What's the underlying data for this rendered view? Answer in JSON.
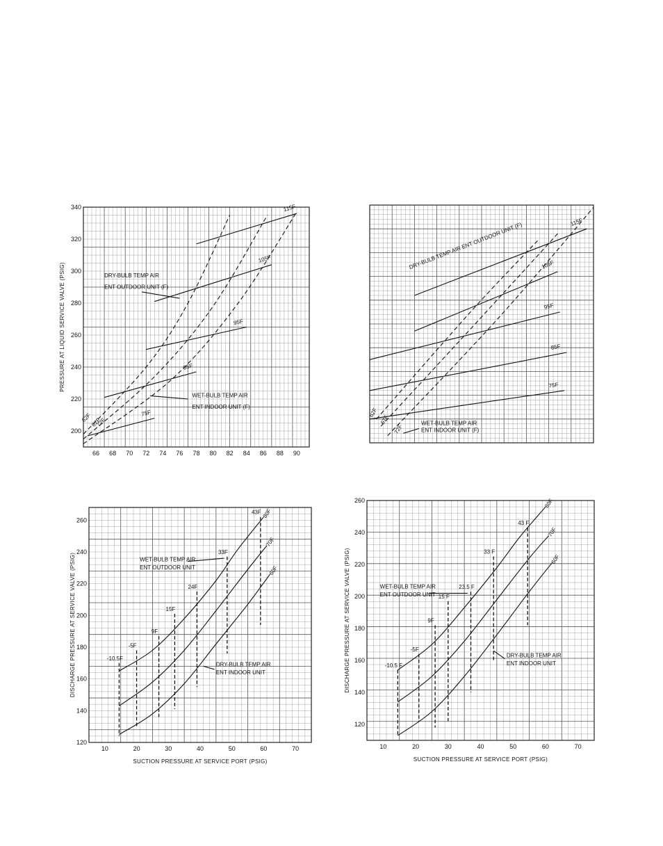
{
  "chart_data": [
    {
      "id": "top-left",
      "type": "line",
      "ylabel": "PRESSURE AT LIQUID SERVICE VALVE (PSIG)",
      "xlabel": "",
      "xlim": [
        64.5,
        91.5
      ],
      "ylim": [
        190,
        340
      ],
      "xticks": [
        66,
        68,
        70,
        72,
        74,
        76,
        78,
        80,
        82,
        84,
        86,
        88,
        90
      ],
      "yticks": [
        200,
        220,
        240,
        260,
        280,
        300,
        320,
        340
      ],
      "series": [
        {
          "name": "115F",
          "style": "solid",
          "points": [
            [
              78,
              317
            ],
            [
              90,
              336
            ]
          ]
        },
        {
          "name": "105F",
          "style": "solid",
          "points": [
            [
              73,
              281
            ],
            [
              87,
              304
            ]
          ]
        },
        {
          "name": "95F",
          "style": "solid",
          "points": [
            [
              72,
              251
            ],
            [
              84,
              265
            ]
          ]
        },
        {
          "name": "85F",
          "style": "solid",
          "points": [
            [
              67,
              221
            ],
            [
              78,
              237
            ]
          ]
        },
        {
          "name": "75F",
          "style": "solid",
          "points": [
            [
              65,
              197
            ],
            [
              73,
              208
            ]
          ]
        },
        {
          "name": "62F",
          "style": "dashed",
          "points": [
            [
              64.5,
              198
            ],
            [
              72,
              240
            ],
            [
              77,
              280
            ],
            [
              82,
              335
            ]
          ]
        },
        {
          "name": "67F",
          "style": "dashed",
          "points": [
            [
              64.5,
              195
            ],
            [
              73,
              234
            ],
            [
              80,
              278
            ],
            [
              86.5,
              335
            ]
          ]
        },
        {
          "name": "72F",
          "style": "dashed",
          "points": [
            [
              64.5,
              192
            ],
            [
              75,
              232
            ],
            [
              83,
              280
            ],
            [
              90,
              337
            ]
          ]
        }
      ],
      "annotations": [
        {
          "text": "DRY-BULB TEMP AIR",
          "x": 67,
          "y": 296
        },
        {
          "text": "ENT OUTDOOR UNIT (F)",
          "x": 67,
          "y": 289
        },
        {
          "text": "WET-BULB TEMP AIR",
          "x": 77.5,
          "y": 221
        },
        {
          "text": "ENT INDOOR UNIT (F)",
          "x": 77.5,
          "y": 214
        }
      ]
    },
    {
      "id": "top-right",
      "type": "line",
      "ylabel": "",
      "xlabel": "",
      "series": [
        {
          "name": "115F",
          "style": "solid",
          "points": [
            [
              0.2,
              0.62
            ],
            [
              0.97,
              0.9
            ]
          ]
        },
        {
          "name": "105F",
          "style": "solid",
          "points": [
            [
              0.2,
              0.47
            ],
            [
              0.84,
              0.72
            ]
          ]
        },
        {
          "name": "95F",
          "style": "solid",
          "points": [
            [
              0.0,
              0.35
            ],
            [
              0.85,
              0.55
            ]
          ]
        },
        {
          "name": "85F",
          "style": "solid",
          "points": [
            [
              0.0,
              0.22
            ],
            [
              0.88,
              0.38
            ]
          ]
        },
        {
          "name": "75F",
          "style": "solid",
          "points": [
            [
              0.0,
              0.1
            ],
            [
              0.87,
              0.22
            ]
          ]
        },
        {
          "name": "62F",
          "style": "dashed",
          "points": [
            [
              0.03,
              0.1
            ],
            [
              0.45,
              0.55
            ],
            [
              0.75,
              0.85
            ]
          ]
        },
        {
          "name": "67F",
          "style": "dashed",
          "points": [
            [
              0.05,
              0.07
            ],
            [
              0.52,
              0.55
            ],
            [
              0.84,
              0.88
            ]
          ]
        },
        {
          "name": "72F",
          "style": "dashed",
          "points": [
            [
              0.08,
              0.03
            ],
            [
              0.58,
              0.53
            ],
            [
              1.0,
              0.99
            ]
          ]
        }
      ],
      "annotations": [
        {
          "text": "DRY-BULB TEMP AIR ENT OUTDOOR UNIT (F)"
        },
        {
          "text": "WET-BULB TEMP AIR"
        },
        {
          "text": "ENT INDOOR UNIT (F)"
        }
      ]
    },
    {
      "id": "bottom-left",
      "type": "line",
      "ylabel": "DISCHARGE PRESSURE AT SERVICE VALVE (PSIG)",
      "xlabel": "SUCTION PRESSURE AT SERVICE PORT (PSIG)",
      "xlim": [
        5,
        75
      ],
      "ylim": [
        120,
        268
      ],
      "xticks": [
        10,
        20,
        30,
        40,
        50,
        60,
        70
      ],
      "yticks": [
        120,
        140,
        160,
        180,
        200,
        220,
        240,
        260
      ],
      "series": [
        {
          "name": "80F",
          "style": "solid",
          "points": [
            [
              14.5,
              165
            ],
            [
              25,
              178
            ],
            [
              35,
              198
            ],
            [
              45,
              222
            ],
            [
              52,
              242
            ],
            [
              60,
              262
            ]
          ]
        },
        {
          "name": "70F",
          "style": "solid",
          "points": [
            [
              14.5,
              143
            ],
            [
              25,
              158
            ],
            [
              35,
              178
            ],
            [
              45,
              203
            ],
            [
              55,
              229
            ],
            [
              61,
              244
            ]
          ]
        },
        {
          "name": "60F",
          "style": "solid",
          "points": [
            [
              14.5,
              125
            ],
            [
              25,
              138
            ],
            [
              35,
              157
            ],
            [
              45,
              182
            ],
            [
              55,
              207
            ],
            [
              62,
              226
            ]
          ]
        }
      ],
      "wet_bulb_lines": [
        {
          "label": "-10.5F",
          "x": 14.5,
          "y_top": 170,
          "y_bot": 124
        },
        {
          "label": "-5F",
          "x": 20,
          "y_top": 178,
          "y_bot": 130
        },
        {
          "label": "9F",
          "x": 27,
          "y_top": 187,
          "y_bot": 136
        },
        {
          "label": "15F",
          "x": 32,
          "y_top": 201,
          "y_bot": 141
        },
        {
          "label": "24F",
          "x": 39,
          "y_top": 215,
          "y_bot": 155
        },
        {
          "label": "33F",
          "x": 48.5,
          "y_top": 237,
          "y_bot": 176
        },
        {
          "label": "43F",
          "x": 59,
          "y_top": 262,
          "y_bot": 194
        }
      ],
      "annotations": [
        {
          "text": "WET-BULB TEMP AIR",
          "x": 21,
          "y": 234
        },
        {
          "text": "ENT OUTDOOR UNIT",
          "x": 21,
          "y": 229
        },
        {
          "text": "DRY-BULB TEMP AIR",
          "x": 45,
          "y": 168
        },
        {
          "text": "ENT INDOOR UNIT",
          "x": 45,
          "y": 163
        }
      ]
    },
    {
      "id": "bottom-right",
      "type": "line",
      "ylabel": "DISCHARGE PRESSURE AT SERVICE VALVE (PSIG)",
      "xlabel": "SUCTION PRESSURE AT SERVICE PORT (PSIG)",
      "xlim": [
        5,
        75
      ],
      "ylim": [
        110,
        260
      ],
      "xticks": [
        10,
        20,
        30,
        40,
        50,
        60,
        70
      ],
      "yticks": [
        120,
        140,
        160,
        180,
        200,
        220,
        240,
        260
      ],
      "series": [
        {
          "name": "80F",
          "style": "solid",
          "points": [
            [
              14.5,
              154
            ],
            [
              25,
              170
            ],
            [
              35,
              193
            ],
            [
              45,
              218
            ],
            [
              52,
              237
            ],
            [
              60,
              256
            ]
          ]
        },
        {
          "name": "70F",
          "style": "solid",
          "points": [
            [
              14.5,
              134
            ],
            [
              25,
              150
            ],
            [
              35,
              172
            ],
            [
              45,
              198
            ],
            [
              55,
              224
            ],
            [
              61,
              238
            ]
          ]
        },
        {
          "name": "60F",
          "style": "solid",
          "points": [
            [
              14.5,
              113
            ],
            [
              25,
              128
            ],
            [
              35,
              150
            ],
            [
              45,
              176
            ],
            [
              55,
              203
            ],
            [
              62,
              221
            ]
          ]
        }
      ],
      "wet_bulb_lines": [
        {
          "label": "-10.5 F",
          "x": 14.5,
          "y_top": 154,
          "y_bot": 113
        },
        {
          "label": "-5F",
          "x": 21,
          "y_top": 164,
          "y_bot": 122
        },
        {
          "label": "9F",
          "x": 26,
          "y_top": 182,
          "y_bot": 118
        },
        {
          "label": "15 F",
          "x": 30,
          "y_top": 197,
          "y_bot": 122
        },
        {
          "label": "23.5 F",
          "x": 37,
          "y_top": 203,
          "y_bot": 140
        },
        {
          "label": "33 F",
          "x": 44,
          "y_top": 225,
          "y_bot": 160
        },
        {
          "label": "43 F",
          "x": 54.5,
          "y_top": 243,
          "y_bot": 182
        }
      ],
      "annotations": [
        {
          "text": "WET-BULB TEMP AIR",
          "x": 9,
          "y": 205
        },
        {
          "text": "ENT OUTDOOR UNIT",
          "x": 9,
          "y": 200
        },
        {
          "text": "DRY-BULB TEMP AIR",
          "x": 48,
          "y": 162
        },
        {
          "text": "ENT INDOOR UNIT",
          "x": 48,
          "y": 157
        }
      ]
    }
  ]
}
